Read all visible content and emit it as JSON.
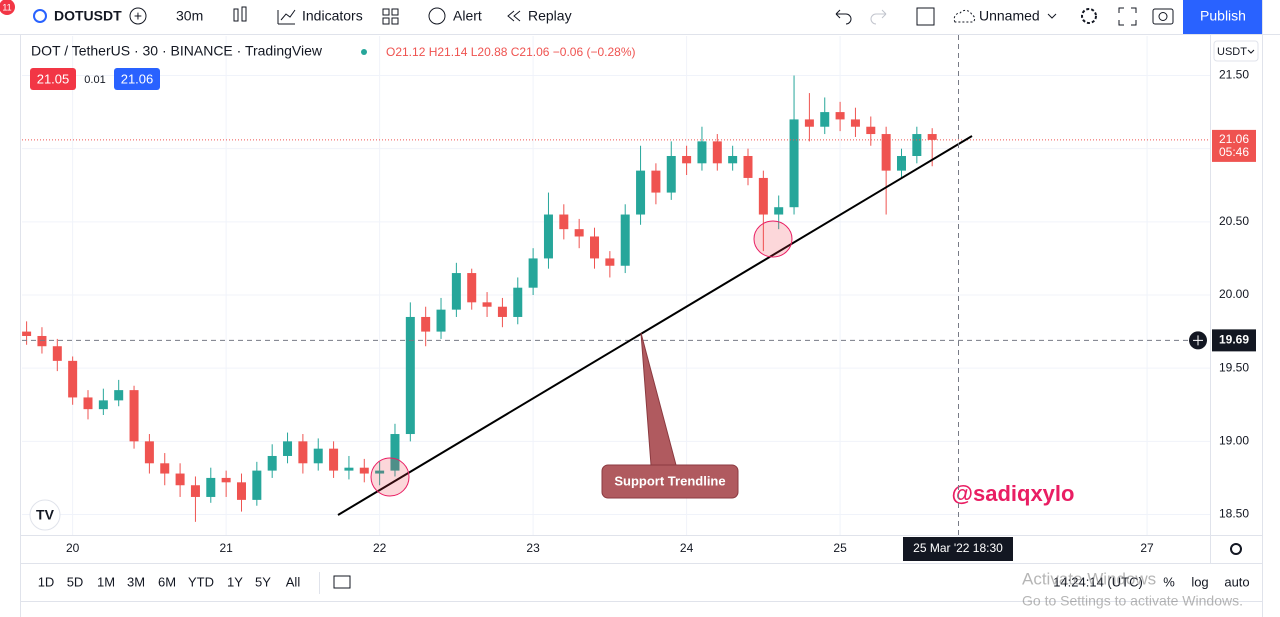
{
  "toolbar": {
    "symbol": "DOTUSDT",
    "interval": "30m",
    "indicators": "Indicators",
    "alert": "Alert",
    "replay": "Replay",
    "layout_name": "Unnamed",
    "publish": "Publish",
    "badge": "11"
  },
  "legend": {
    "title": "DOT / TetherUS · 30 · BINANCE · TradingView",
    "ohlc": "O21.12 H21.14 L20.88 C21.06 −0.06 (−0.28%)",
    "sell": "21.05",
    "spread": "0.01",
    "buy": "21.06"
  },
  "currency": "USDT",
  "chart_data": {
    "type": "candlestick",
    "up_color": "#26a69a",
    "down_color": "#ef5350",
    "x": [
      19.7,
      19.8,
      19.9,
      20.0,
      20.1,
      20.2,
      20.3,
      20.4,
      20.5,
      20.6,
      20.7,
      20.8,
      20.9,
      21.0,
      21.1,
      21.2,
      21.3,
      21.4,
      21.5,
      21.6,
      21.7,
      21.8,
      21.9,
      22.0,
      22.1,
      22.2,
      22.3,
      22.4,
      22.5,
      22.6,
      22.7,
      22.8,
      22.9,
      23.0,
      23.1,
      23.2,
      23.3,
      23.4,
      23.5,
      23.6,
      23.7,
      23.8,
      23.9,
      24.0,
      24.1,
      24.2,
      24.3,
      24.4,
      24.5,
      24.6,
      24.7,
      24.8,
      24.9,
      25.0,
      25.1,
      25.2,
      25.3,
      25.4,
      25.5,
      25.6
    ],
    "open": [
      19.75,
      19.72,
      19.65,
      19.55,
      19.3,
      19.22,
      19.28,
      19.35,
      19.0,
      18.85,
      18.78,
      18.7,
      18.62,
      18.75,
      18.72,
      18.6,
      18.8,
      18.9,
      19.0,
      18.85,
      18.95,
      18.8,
      18.82,
      18.78,
      18.8,
      19.05,
      19.85,
      19.75,
      19.9,
      20.15,
      19.95,
      19.92,
      19.85,
      20.05,
      20.25,
      20.55,
      20.45,
      20.4,
      20.25,
      20.2,
      20.55,
      20.85,
      20.7,
      20.95,
      20.9,
      21.05,
      20.9,
      20.95,
      20.8,
      20.55,
      20.6,
      21.2,
      21.15,
      21.25,
      21.2,
      21.15,
      21.1,
      20.85,
      20.95,
      21.1
    ],
    "high": [
      19.82,
      19.78,
      19.7,
      19.58,
      19.35,
      19.36,
      19.42,
      19.38,
      19.05,
      18.92,
      18.85,
      18.76,
      18.82,
      18.8,
      18.78,
      18.86,
      18.98,
      19.06,
      19.05,
      19.02,
      19.0,
      18.9,
      18.88,
      18.86,
      19.12,
      19.95,
      19.92,
      19.98,
      20.22,
      20.18,
      20.02,
      19.98,
      20.12,
      20.32,
      20.7,
      20.62,
      20.52,
      20.46,
      20.3,
      20.62,
      21.02,
      20.9,
      21.05,
      21.02,
      21.15,
      21.1,
      21.02,
      21.0,
      20.85,
      20.68,
      21.5,
      21.38,
      21.35,
      21.32,
      21.28,
      21.22,
      21.15,
      21.0,
      21.15,
      21.14
    ],
    "low": [
      19.66,
      19.6,
      19.48,
      19.25,
      19.15,
      19.18,
      19.24,
      18.95,
      18.78,
      18.7,
      18.62,
      18.45,
      18.58,
      18.62,
      18.52,
      18.56,
      18.75,
      18.85,
      18.78,
      18.8,
      18.75,
      18.74,
      18.72,
      18.7,
      18.76,
      19.0,
      19.65,
      19.7,
      19.85,
      19.9,
      19.85,
      19.78,
      19.8,
      20.0,
      20.18,
      20.38,
      20.32,
      20.18,
      20.12,
      20.15,
      20.48,
      20.62,
      20.65,
      20.82,
      20.85,
      20.85,
      20.85,
      20.75,
      20.3,
      20.45,
      20.55,
      21.05,
      21.1,
      21.12,
      21.08,
      21.02,
      20.55,
      20.8,
      20.9,
      20.88
    ],
    "close": [
      19.72,
      19.65,
      19.55,
      19.3,
      19.22,
      19.28,
      19.35,
      19.0,
      18.85,
      18.78,
      18.7,
      18.62,
      18.75,
      18.72,
      18.6,
      18.8,
      18.9,
      19.0,
      18.85,
      18.95,
      18.8,
      18.82,
      18.78,
      18.8,
      19.05,
      19.85,
      19.75,
      19.9,
      20.15,
      19.95,
      19.92,
      19.85,
      20.05,
      20.25,
      20.55,
      20.45,
      20.4,
      20.25,
      20.2,
      20.55,
      20.85,
      20.7,
      20.95,
      20.9,
      21.05,
      20.9,
      20.95,
      20.8,
      20.55,
      20.6,
      21.2,
      21.15,
      21.25,
      21.2,
      21.15,
      21.1,
      20.85,
      20.95,
      21.1,
      21.06
    ],
    "xlim": [
      19.67,
      27.41
    ],
    "ylim": [
      18.36,
      21.77
    ],
    "xticks": [
      20,
      21,
      22,
      23,
      24,
      25,
      27
    ],
    "yticks": [
      {
        "value": 18.5,
        "label": "18.50"
      },
      {
        "value": 19,
        "label": "19.00"
      },
      {
        "value": 19.5,
        "label": "19.50"
      },
      {
        "value": 20,
        "label": "20.00"
      },
      {
        "value": 20.5,
        "label": "20.50"
      },
      {
        "value": 21,
        "label": "21.00"
      },
      {
        "value": 21.5,
        "label": "21.50"
      }
    ],
    "last_price": {
      "value": 21.06,
      "label": "21.06",
      "countdown": "05:46",
      "color": "#ef5350"
    },
    "crosshair": {
      "price": {
        "value": 19.69,
        "label": "19.69"
      },
      "time": "25 Mar '22 18:30"
    },
    "annotations": {
      "trendline": "Support Trendline",
      "author": "@sadiqxylo"
    }
  },
  "bottom_bar": {
    "ranges": [
      "1D",
      "5D",
      "1M",
      "3M",
      "6M",
      "YTD",
      "1Y",
      "5Y",
      "All"
    ],
    "clock": "14:24:14 (UTC)",
    "percent": "%",
    "log": "log",
    "auto": "auto"
  },
  "watermark": {
    "title": "Activate Windows",
    "subtitle": "Go to Settings to activate Windows."
  }
}
